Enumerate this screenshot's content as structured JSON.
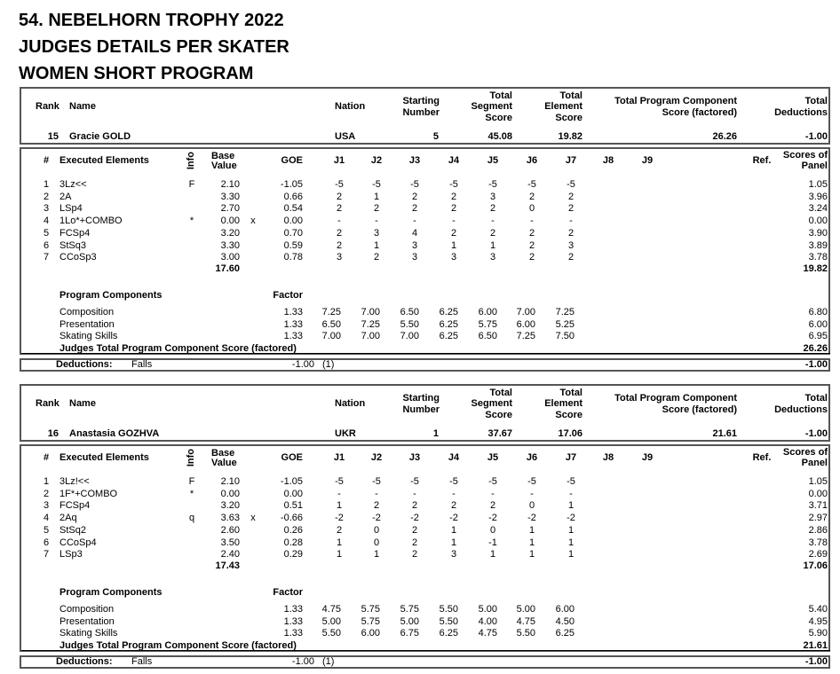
{
  "titles": [
    "54. NEBELHORN TROPHY 2022",
    "JUDGES DETAILS PER SKATER",
    "WOMEN SHORT PROGRAM"
  ],
  "labels": {
    "rank": "Rank",
    "name": "Name",
    "nation": "Nation",
    "starting_1": "Starting",
    "starting_2": "Number",
    "tss_1": "Total",
    "tss_2": "Segment",
    "tss_3": "Score",
    "tes_1": "Total",
    "tes_2": "Element",
    "tes_3": "Score",
    "pcs_1": "Total Program Component",
    "pcs_2": "Score (factored)",
    "ded_1": "Total",
    "ded_2": "Deductions",
    "num": "#",
    "executed_elements": "Executed Elements",
    "info": "Info",
    "base_1": "Base",
    "base_2": "Value",
    "goe": "GOE",
    "judges": [
      "J1",
      "J2",
      "J3",
      "J4",
      "J5",
      "J6",
      "J7",
      "J8",
      "J9"
    ],
    "ref": "Ref.",
    "sop_1": "Scores of",
    "sop_2": "Panel",
    "program_components": "Program Components",
    "factor": "Factor",
    "judges_total": "Judges Total Program Component Score (factored)",
    "deductions": "Deductions:"
  },
  "skaters": [
    {
      "rank": "15",
      "name": "Gracie GOLD",
      "nation": "USA",
      "starting_number": "5",
      "tss": "45.08",
      "tes": "19.82",
      "pcs": "26.26",
      "total_deductions": "-1.00",
      "elements": [
        {
          "num": "1",
          "name": "3Lz<<",
          "info": "F",
          "base": "2.10",
          "x": "",
          "goe": "-1.05",
          "judges": [
            "-5",
            "-5",
            "-5",
            "-5",
            "-5",
            "-5",
            "-5"
          ],
          "panel": "1.05"
        },
        {
          "num": "2",
          "name": "2A",
          "info": "",
          "base": "3.30",
          "x": "",
          "goe": "0.66",
          "judges": [
            "2",
            "1",
            "2",
            "2",
            "3",
            "2",
            "2"
          ],
          "panel": "3.96"
        },
        {
          "num": "3",
          "name": "LSp4",
          "info": "",
          "base": "2.70",
          "x": "",
          "goe": "0.54",
          "judges": [
            "2",
            "2",
            "2",
            "2",
            "2",
            "0",
            "2"
          ],
          "panel": "3.24"
        },
        {
          "num": "4",
          "name": "1Lo*+COMBO",
          "info": "*",
          "base": "0.00",
          "x": "x",
          "goe": "0.00",
          "judges": [
            "-",
            "-",
            "-",
            "-",
            "-",
            "-",
            "-"
          ],
          "panel": "0.00"
        },
        {
          "num": "5",
          "name": "FCSp4",
          "info": "",
          "base": "3.20",
          "x": "",
          "goe": "0.70",
          "judges": [
            "2",
            "3",
            "4",
            "2",
            "2",
            "2",
            "2"
          ],
          "panel": "3.90"
        },
        {
          "num": "6",
          "name": "StSq3",
          "info": "",
          "base": "3.30",
          "x": "",
          "goe": "0.59",
          "judges": [
            "2",
            "1",
            "3",
            "1",
            "1",
            "2",
            "3"
          ],
          "panel": "3.89"
        },
        {
          "num": "7",
          "name": "CCoSp3",
          "info": "",
          "base": "3.00",
          "x": "",
          "goe": "0.78",
          "judges": [
            "3",
            "2",
            "3",
            "3",
            "3",
            "2",
            "2"
          ],
          "panel": "3.78"
        }
      ],
      "base_total": "17.60",
      "tes_total": "19.82",
      "components": [
        {
          "name": "Composition",
          "factor": "1.33",
          "judges": [
            "7.25",
            "7.00",
            "6.50",
            "6.25",
            "6.00",
            "7.00",
            "7.25"
          ],
          "score": "6.80"
        },
        {
          "name": "Presentation",
          "factor": "1.33",
          "judges": [
            "6.50",
            "7.25",
            "5.50",
            "6.25",
            "5.75",
            "6.00",
            "5.25"
          ],
          "score": "6.00"
        },
        {
          "name": "Skating Skills",
          "factor": "1.33",
          "judges": [
            "7.00",
            "7.00",
            "7.00",
            "6.25",
            "6.50",
            "7.25",
            "7.50"
          ],
          "score": "6.95"
        }
      ],
      "pcs_total": "26.26",
      "deduction_type": "Falls",
      "deduction_value": "-1.00",
      "deduction_count": "(1)",
      "deduction_total": "-1.00"
    },
    {
      "rank": "16",
      "name": "Anastasia GOZHVA",
      "nation": "UKR",
      "starting_number": "1",
      "tss": "37.67",
      "tes": "17.06",
      "pcs": "21.61",
      "total_deductions": "-1.00",
      "elements": [
        {
          "num": "1",
          "name": "3Lz!<<",
          "info": "F",
          "base": "2.10",
          "x": "",
          "goe": "-1.05",
          "judges": [
            "-5",
            "-5",
            "-5",
            "-5",
            "-5",
            "-5",
            "-5"
          ],
          "panel": "1.05"
        },
        {
          "num": "2",
          "name": "1F*+COMBO",
          "info": "*",
          "base": "0.00",
          "x": "",
          "goe": "0.00",
          "judges": [
            "-",
            "-",
            "-",
            "-",
            "-",
            "-",
            "-"
          ],
          "panel": "0.00"
        },
        {
          "num": "3",
          "name": "FCSp4",
          "info": "",
          "base": "3.20",
          "x": "",
          "goe": "0.51",
          "judges": [
            "1",
            "2",
            "2",
            "2",
            "2",
            "0",
            "1"
          ],
          "panel": "3.71"
        },
        {
          "num": "4",
          "name": "2Aq",
          "info": "q",
          "base": "3.63",
          "x": "x",
          "goe": "-0.66",
          "judges": [
            "-2",
            "-2",
            "-2",
            "-2",
            "-2",
            "-2",
            "-2"
          ],
          "panel": "2.97"
        },
        {
          "num": "5",
          "name": "StSq2",
          "info": "",
          "base": "2.60",
          "x": "",
          "goe": "0.26",
          "judges": [
            "2",
            "0",
            "2",
            "1",
            "0",
            "1",
            "1"
          ],
          "panel": "2.86"
        },
        {
          "num": "6",
          "name": "CCoSp4",
          "info": "",
          "base": "3.50",
          "x": "",
          "goe": "0.28",
          "judges": [
            "1",
            "0",
            "2",
            "1",
            "-1",
            "1",
            "1"
          ],
          "panel": "3.78"
        },
        {
          "num": "7",
          "name": "LSp3",
          "info": "",
          "base": "2.40",
          "x": "",
          "goe": "0.29",
          "judges": [
            "1",
            "1",
            "2",
            "3",
            "1",
            "1",
            "1"
          ],
          "panel": "2.69"
        }
      ],
      "base_total": "17.43",
      "tes_total": "17.06",
      "components": [
        {
          "name": "Composition",
          "factor": "1.33",
          "judges": [
            "4.75",
            "5.75",
            "5.75",
            "5.50",
            "5.00",
            "5.00",
            "6.00"
          ],
          "score": "5.40"
        },
        {
          "name": "Presentation",
          "factor": "1.33",
          "judges": [
            "5.00",
            "5.75",
            "5.00",
            "5.50",
            "4.00",
            "4.75",
            "4.50"
          ],
          "score": "4.95"
        },
        {
          "name": "Skating Skills",
          "factor": "1.33",
          "judges": [
            "5.50",
            "6.00",
            "6.75",
            "6.25",
            "4.75",
            "5.50",
            "6.25"
          ],
          "score": "5.90"
        }
      ],
      "pcs_total": "21.61",
      "deduction_type": "Falls",
      "deduction_value": "-1.00",
      "deduction_count": "(1)",
      "deduction_total": "-1.00"
    }
  ]
}
